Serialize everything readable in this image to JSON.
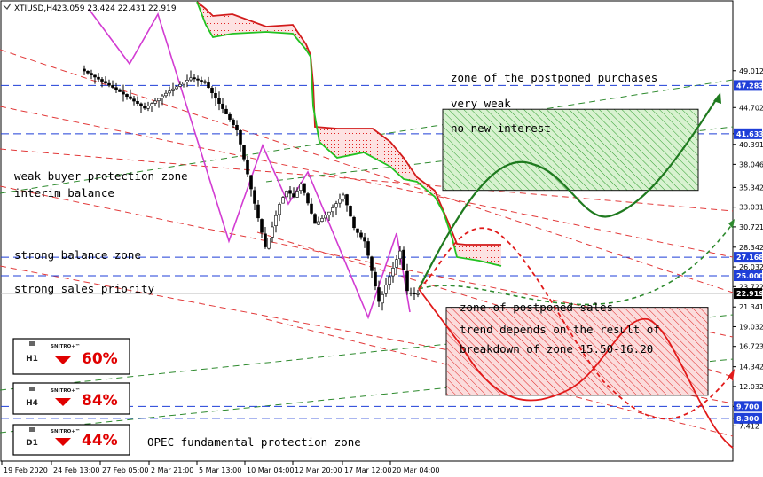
{
  "window": {
    "symbol_header": "XTIUSD,H4",
    "ohlc": "23.059 23.424 22.431 22.919"
  },
  "chart_data": {
    "type": "candlestick",
    "symbol": "XTIUSD",
    "timeframe": "H4",
    "ylim": [
      7.412,
      49.5
    ],
    "y_ticks": [
      "49.012",
      "44.702",
      "41.633",
      "40.391",
      "38.046",
      "35.342",
      "33.031",
      "30.721",
      "28.342",
      "26.032",
      "23.722",
      "21.341",
      "19.032",
      "16.723",
      "14.342",
      "12.032",
      "9.700",
      "8.300",
      "7.412"
    ],
    "x_ticks": [
      "19 Feb 2020",
      "24 Feb 13:00",
      "27 Feb 05:00",
      "2 Mar 21:00",
      "5 Mar 13:00",
      "10 Mar 04:00",
      "12 Mar 20:00",
      "17 Mar 12:00",
      "20 Mar 04:00"
    ],
    "current_price": 22.919,
    "price_labels": [
      {
        "value": 47.283,
        "color": "#1f3fd8"
      },
      {
        "value": 41.633,
        "color": "#1f3fd8"
      },
      {
        "value": 27.168,
        "color": "#1f3fd8"
      },
      {
        "value": 25.0,
        "color": "#1f3fd8"
      },
      {
        "value": 22.919,
        "color": "#000000"
      },
      {
        "value": 9.7,
        "color": "#1f3fd8"
      },
      {
        "value": 8.3,
        "color": "#1f3fd8"
      }
    ],
    "horizontal_levels": [
      47.283,
      41.633,
      27.168,
      25.0,
      9.7,
      8.3
    ],
    "price_path": [
      {
        "i": 0,
        "p": 49.2
      },
      {
        "i": 10,
        "p": 46.8
      },
      {
        "i": 18,
        "p": 44.6
      },
      {
        "i": 24,
        "p": 46.4
      },
      {
        "i": 31,
        "p": 48.2
      },
      {
        "i": 35,
        "p": 47.6
      },
      {
        "i": 40,
        "p": 44.5
      },
      {
        "i": 44,
        "p": 42.0
      },
      {
        "i": 48,
        "p": 35.0
      },
      {
        "i": 52,
        "p": 28.2
      },
      {
        "i": 56,
        "p": 33.5
      },
      {
        "i": 58,
        "p": 35.0
      },
      {
        "i": 60,
        "p": 34.2
      },
      {
        "i": 62,
        "p": 35.8
      },
      {
        "i": 66,
        "p": 31.0
      },
      {
        "i": 70,
        "p": 32.5
      },
      {
        "i": 74,
        "p": 34.5
      },
      {
        "i": 77,
        "p": 30.5
      },
      {
        "i": 80,
        "p": 29.0
      },
      {
        "i": 84,
        "p": 21.8
      },
      {
        "i": 86,
        "p": 24.0
      },
      {
        "i": 88,
        "p": 26.0
      },
      {
        "i": 90,
        "p": 28.0
      },
      {
        "i": 92,
        "p": 23.0
      },
      {
        "i": 94,
        "p": 22.9
      }
    ],
    "zones": [
      {
        "label_lines": [
          "zone of the postponed purchases",
          "very weak",
          "no new interest"
        ],
        "from": 35.0,
        "to": 44.5,
        "color": "#2e9e2e"
      },
      {
        "label_lines": [
          "zone of postponed sales",
          "trend depends on the result of",
          "breakdown of zone 15.50-16.20"
        ],
        "from": 11.0,
        "to": 21.3,
        "color": "#e02020"
      }
    ],
    "annotations": [
      "weak buyer protection zone",
      "interim balance",
      "strong balance zone",
      "strong sales priority",
      "OPEC fundamental protection zone"
    ],
    "indicators": [
      {
        "brand": "SNITRO+™",
        "timeframe": "H1",
        "percent": "60%"
      },
      {
        "brand": "SNITRO+™",
        "timeframe": "H4",
        "percent": "84%"
      },
      {
        "brand": "SNITRO+™",
        "timeframe": "D1",
        "percent": "44%"
      }
    ]
  }
}
